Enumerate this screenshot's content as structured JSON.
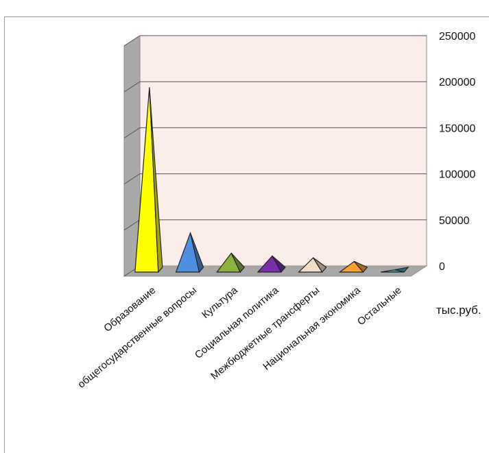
{
  "chart_data": {
    "type": "bar",
    "categories": [
      "Образование",
      "общегосударственные вопросы",
      "Культура",
      "Социальная политика",
      "Межбюджетные трансферты",
      "Национальная экономика",
      "Остальные"
    ],
    "values": [
      200000,
      42000,
      20000,
      17000,
      15000,
      11000,
      2000
    ],
    "colors": [
      "#ffff00",
      "#4f8fe0",
      "#8cb33a",
      "#7a2ea8",
      "#f3dcc8",
      "#ffa030",
      "#4aa3b8"
    ],
    "ylim": [
      0,
      250000
    ],
    "yticks": [
      0,
      50000,
      100000,
      150000,
      200000,
      250000
    ],
    "ytick_labels": [
      "0",
      "50000",
      "100000",
      "150000",
      "200000",
      "250000"
    ],
    "unit_label": "тыс.руб.",
    "grid": true,
    "plot_background": "#fbeeea"
  }
}
